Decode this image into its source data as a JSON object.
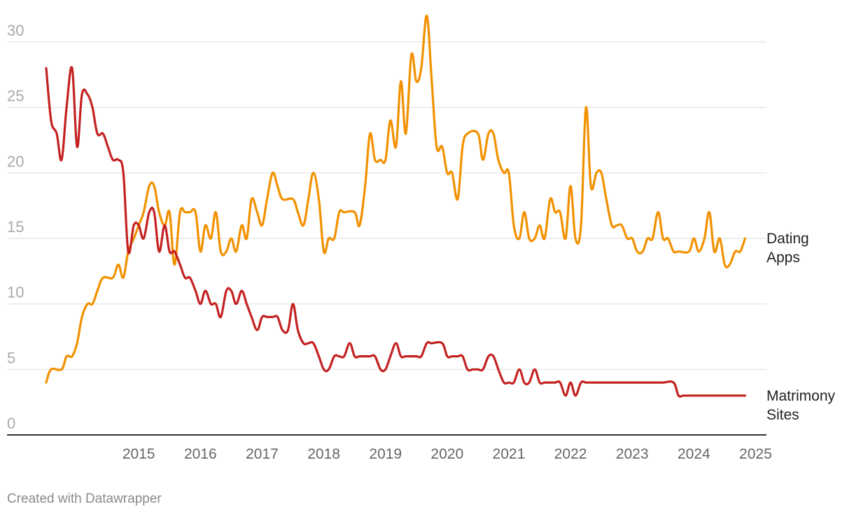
{
  "chart_data": {
    "type": "line",
    "ylim": [
      0,
      30
    ],
    "y_ticks": [
      "0",
      "5",
      "10",
      "15",
      "20",
      "25",
      "30"
    ],
    "x_range": [
      2014.0,
      2025.45
    ],
    "x_ticks": [
      "2015",
      "2016",
      "2017",
      "2018",
      "2019",
      "2020",
      "2021",
      "2022",
      "2023",
      "2024",
      "2025"
    ],
    "grid": true,
    "legend": "inline labels at right end of lines",
    "series": [
      {
        "name": "Dating Apps",
        "label_lines": [
          "Dating",
          "Apps"
        ],
        "color": "#f29100",
        "points": [
          [
            2014.0,
            4
          ],
          [
            2014.08,
            5
          ],
          [
            2014.25,
            5
          ],
          [
            2014.33,
            6
          ],
          [
            2014.42,
            6
          ],
          [
            2014.5,
            7
          ],
          [
            2014.58,
            9
          ],
          [
            2014.67,
            10
          ],
          [
            2014.75,
            10
          ],
          [
            2014.83,
            11
          ],
          [
            2014.92,
            12
          ],
          [
            2015.08,
            12
          ],
          [
            2015.17,
            13
          ],
          [
            2015.25,
            12
          ],
          [
            2015.33,
            14
          ],
          [
            2015.42,
            15
          ],
          [
            2015.5,
            16
          ],
          [
            2015.58,
            17
          ],
          [
            2015.67,
            19
          ],
          [
            2015.75,
            19
          ],
          [
            2015.83,
            17
          ],
          [
            2015.92,
            16
          ],
          [
            2016.0,
            17
          ],
          [
            2016.08,
            13
          ],
          [
            2016.17,
            17
          ],
          [
            2016.25,
            17
          ],
          [
            2016.33,
            17
          ],
          [
            2016.42,
            17
          ],
          [
            2016.5,
            14
          ],
          [
            2016.58,
            16
          ],
          [
            2016.67,
            15
          ],
          [
            2016.75,
            17
          ],
          [
            2016.83,
            14
          ],
          [
            2016.92,
            14
          ],
          [
            2017.0,
            15
          ],
          [
            2017.08,
            14
          ],
          [
            2017.17,
            16
          ],
          [
            2017.25,
            15
          ],
          [
            2017.33,
            18
          ],
          [
            2017.42,
            17
          ],
          [
            2017.5,
            16
          ],
          [
            2017.58,
            18
          ],
          [
            2017.67,
            20
          ],
          [
            2017.75,
            19
          ],
          [
            2017.83,
            18
          ],
          [
            2018.0,
            18
          ],
          [
            2018.08,
            17
          ],
          [
            2018.17,
            16
          ],
          [
            2018.25,
            18
          ],
          [
            2018.33,
            20
          ],
          [
            2018.42,
            18
          ],
          [
            2018.5,
            14
          ],
          [
            2018.58,
            15
          ],
          [
            2018.67,
            15
          ],
          [
            2018.75,
            17
          ],
          [
            2018.83,
            17
          ],
          [
            2019.0,
            17
          ],
          [
            2019.08,
            16
          ],
          [
            2019.17,
            19
          ],
          [
            2019.25,
            23
          ],
          [
            2019.33,
            21
          ],
          [
            2019.42,
            21
          ],
          [
            2019.5,
            21
          ],
          [
            2019.58,
            24
          ],
          [
            2019.67,
            22
          ],
          [
            2019.75,
            27
          ],
          [
            2019.83,
            23
          ],
          [
            2019.92,
            29
          ],
          [
            2020.0,
            27
          ],
          [
            2020.08,
            28
          ],
          [
            2020.17,
            32
          ],
          [
            2020.25,
            27
          ],
          [
            2020.33,
            22
          ],
          [
            2020.42,
            22
          ],
          [
            2020.5,
            20
          ],
          [
            2020.58,
            20
          ],
          [
            2020.67,
            18
          ],
          [
            2020.75,
            22
          ],
          [
            2020.83,
            23
          ],
          [
            2021.0,
            23
          ],
          [
            2021.08,
            21
          ],
          [
            2021.17,
            23
          ],
          [
            2021.25,
            23
          ],
          [
            2021.33,
            21
          ],
          [
            2021.42,
            20
          ],
          [
            2021.5,
            20
          ],
          [
            2021.58,
            16
          ],
          [
            2021.67,
            15
          ],
          [
            2021.75,
            17
          ],
          [
            2021.83,
            15
          ],
          [
            2021.92,
            15
          ],
          [
            2022.0,
            16
          ],
          [
            2022.08,
            15
          ],
          [
            2022.17,
            18
          ],
          [
            2022.25,
            17
          ],
          [
            2022.33,
            17
          ],
          [
            2022.42,
            15
          ],
          [
            2022.5,
            19
          ],
          [
            2022.58,
            15
          ],
          [
            2022.67,
            16
          ],
          [
            2022.75,
            25
          ],
          [
            2022.83,
            19
          ],
          [
            2022.92,
            20
          ],
          [
            2023.0,
            20
          ],
          [
            2023.08,
            18
          ],
          [
            2023.17,
            16
          ],
          [
            2023.25,
            16
          ],
          [
            2023.33,
            16
          ],
          [
            2023.42,
            15
          ],
          [
            2023.5,
            15
          ],
          [
            2023.58,
            14
          ],
          [
            2023.67,
            14
          ],
          [
            2023.75,
            15
          ],
          [
            2023.83,
            15
          ],
          [
            2023.92,
            17
          ],
          [
            2024.0,
            15
          ],
          [
            2024.08,
            15
          ],
          [
            2024.17,
            14
          ],
          [
            2024.25,
            14
          ],
          [
            2024.42,
            14
          ],
          [
            2024.5,
            15
          ],
          [
            2024.58,
            14
          ],
          [
            2024.67,
            15
          ],
          [
            2024.75,
            17
          ],
          [
            2024.83,
            14
          ],
          [
            2024.92,
            15
          ],
          [
            2025.0,
            13
          ],
          [
            2025.08,
            13
          ],
          [
            2025.17,
            14
          ],
          [
            2025.25,
            14
          ],
          [
            2025.33,
            15
          ]
        ]
      },
      {
        "name": "Matrimony Sites",
        "label_lines": [
          "Matrimony",
          "Sites"
        ],
        "color": "#c42121",
        "points": [
          [
            2014.0,
            28
          ],
          [
            2014.08,
            24
          ],
          [
            2014.17,
            23
          ],
          [
            2014.25,
            21
          ],
          [
            2014.33,
            25
          ],
          [
            2014.42,
            28
          ],
          [
            2014.5,
            22
          ],
          [
            2014.58,
            26
          ],
          [
            2014.67,
            26
          ],
          [
            2014.75,
            25
          ],
          [
            2014.83,
            23
          ],
          [
            2014.92,
            23
          ],
          [
            2015.0,
            22
          ],
          [
            2015.08,
            21
          ],
          [
            2015.17,
            21
          ],
          [
            2015.25,
            20
          ],
          [
            2015.33,
            14
          ],
          [
            2015.42,
            16
          ],
          [
            2015.5,
            16
          ],
          [
            2015.58,
            15
          ],
          [
            2015.67,
            17
          ],
          [
            2015.75,
            17
          ],
          [
            2015.83,
            14
          ],
          [
            2015.92,
            16
          ],
          [
            2016.0,
            14
          ],
          [
            2016.08,
            14
          ],
          [
            2016.17,
            13
          ],
          [
            2016.25,
            12
          ],
          [
            2016.33,
            12
          ],
          [
            2016.42,
            11
          ],
          [
            2016.5,
            10
          ],
          [
            2016.58,
            11
          ],
          [
            2016.67,
            10
          ],
          [
            2016.75,
            10
          ],
          [
            2016.83,
            9
          ],
          [
            2016.92,
            11
          ],
          [
            2017.0,
            11
          ],
          [
            2017.08,
            10
          ],
          [
            2017.17,
            11
          ],
          [
            2017.25,
            10
          ],
          [
            2017.33,
            9
          ],
          [
            2017.42,
            8
          ],
          [
            2017.5,
            9
          ],
          [
            2017.58,
            9
          ],
          [
            2017.67,
            9
          ],
          [
            2017.75,
            9
          ],
          [
            2017.83,
            8
          ],
          [
            2017.92,
            8
          ],
          [
            2018.0,
            10
          ],
          [
            2018.08,
            8
          ],
          [
            2018.17,
            7
          ],
          [
            2018.25,
            7
          ],
          [
            2018.33,
            7
          ],
          [
            2018.42,
            6
          ],
          [
            2018.5,
            5
          ],
          [
            2018.58,
            5
          ],
          [
            2018.67,
            6
          ],
          [
            2018.75,
            6
          ],
          [
            2018.83,
            6
          ],
          [
            2018.92,
            7
          ],
          [
            2019.0,
            6
          ],
          [
            2019.08,
            6
          ],
          [
            2019.17,
            6
          ],
          [
            2019.25,
            6
          ],
          [
            2019.33,
            6
          ],
          [
            2019.42,
            5
          ],
          [
            2019.5,
            5
          ],
          [
            2019.58,
            6
          ],
          [
            2019.67,
            7
          ],
          [
            2019.75,
            6
          ],
          [
            2019.83,
            6
          ],
          [
            2020.0,
            6
          ],
          [
            2020.08,
            6
          ],
          [
            2020.17,
            7
          ],
          [
            2020.25,
            7
          ],
          [
            2020.42,
            7
          ],
          [
            2020.5,
            6
          ],
          [
            2020.58,
            6
          ],
          [
            2020.67,
            6
          ],
          [
            2020.75,
            6
          ],
          [
            2020.83,
            5
          ],
          [
            2020.92,
            5
          ],
          [
            2021.0,
            5
          ],
          [
            2021.08,
            5
          ],
          [
            2021.17,
            6
          ],
          [
            2021.25,
            6
          ],
          [
            2021.33,
            5
          ],
          [
            2021.42,
            4
          ],
          [
            2021.5,
            4
          ],
          [
            2021.58,
            4
          ],
          [
            2021.67,
            5
          ],
          [
            2021.75,
            4
          ],
          [
            2021.83,
            4
          ],
          [
            2021.92,
            5
          ],
          [
            2022.0,
            4
          ],
          [
            2022.08,
            4
          ],
          [
            2022.17,
            4
          ],
          [
            2022.25,
            4
          ],
          [
            2022.33,
            4
          ],
          [
            2022.42,
            3
          ],
          [
            2022.5,
            4
          ],
          [
            2022.58,
            3
          ],
          [
            2022.67,
            4
          ],
          [
            2022.75,
            4
          ],
          [
            2022.83,
            4
          ],
          [
            2023.0,
            4
          ],
          [
            2023.17,
            4
          ],
          [
            2023.5,
            4
          ],
          [
            2023.83,
            4
          ],
          [
            2024.0,
            4
          ],
          [
            2024.17,
            4
          ],
          [
            2024.25,
            3
          ],
          [
            2024.33,
            3
          ],
          [
            2024.5,
            3
          ],
          [
            2024.75,
            3
          ],
          [
            2025.0,
            3
          ],
          [
            2025.17,
            3
          ],
          [
            2025.33,
            3
          ]
        ]
      }
    ]
  },
  "footer": {
    "credit": "Created with Datawrapper"
  }
}
